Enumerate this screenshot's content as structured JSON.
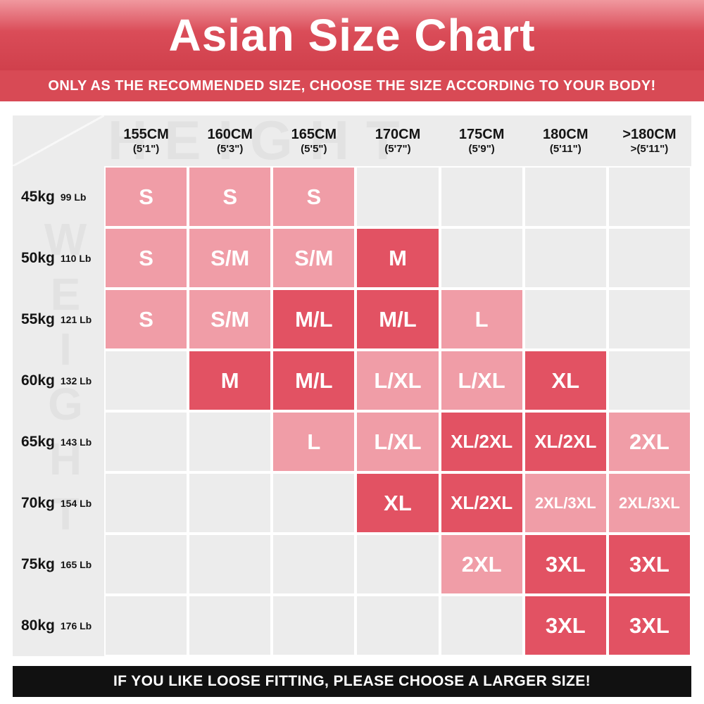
{
  "header": {
    "title": "Asian Size Chart",
    "subtitle": "ONLY AS THE RECOMMENDED SIZE, CHOOSE THE SIZE ACCORDING TO YOUR BODY!"
  },
  "watermarks": {
    "height": "HEIGHT",
    "weight": "WEIGHT"
  },
  "footer": {
    "note": "IF YOU LIKE LOOSE FITTING, PLEASE CHOOSE A LARGER SIZE!"
  },
  "colors": {
    "banner_red_top": "#f0989f",
    "banner_red": "#da4c58",
    "banner_red_bottom": "#d0404c",
    "subtitle_red": "#d84a55",
    "panel_gray": "#ececec",
    "watermark_gray": "#e2e2e2",
    "cell_pink_light": "#f09da7",
    "cell_red_dark": "#e25263",
    "footer_black": "#111111"
  },
  "chart_data": {
    "type": "table",
    "title": "Asian Size Chart",
    "x_axis_label": "HEIGHT",
    "y_axis_label": "WEIGHT",
    "columns": [
      {
        "cm": "155CM",
        "ft": "(5'1\")"
      },
      {
        "cm": "160CM",
        "ft": "(5'3\")"
      },
      {
        "cm": "165CM",
        "ft": "(5'5\")"
      },
      {
        "cm": "170CM",
        "ft": "(5'7\")"
      },
      {
        "cm": "175CM",
        "ft": "(5'9\")"
      },
      {
        "cm": "180CM",
        "ft": "(5'11\")"
      },
      {
        "cm": ">180CM",
        "ft": ">(5'11\")"
      }
    ],
    "rows": [
      {
        "kg": "45kg",
        "lb": "99 Lb",
        "cells": [
          {
            "label": "S",
            "tone": "light"
          },
          {
            "label": "S",
            "tone": "light"
          },
          {
            "label": "S",
            "tone": "light"
          },
          null,
          null,
          null,
          null
        ]
      },
      {
        "kg": "50kg",
        "lb": "110 Lb",
        "cells": [
          {
            "label": "S",
            "tone": "light"
          },
          {
            "label": "S/M",
            "tone": "light"
          },
          {
            "label": "S/M",
            "tone": "light"
          },
          {
            "label": "M",
            "tone": "dark"
          },
          null,
          null,
          null
        ]
      },
      {
        "kg": "55kg",
        "lb": "121 Lb",
        "cells": [
          {
            "label": "S",
            "tone": "light"
          },
          {
            "label": "S/M",
            "tone": "light"
          },
          {
            "label": "M/L",
            "tone": "dark"
          },
          {
            "label": "M/L",
            "tone": "dark"
          },
          {
            "label": "L",
            "tone": "light"
          },
          null,
          null
        ]
      },
      {
        "kg": "60kg",
        "lb": "132 Lb",
        "cells": [
          null,
          {
            "label": "M",
            "tone": "dark"
          },
          {
            "label": "M/L",
            "tone": "dark"
          },
          {
            "label": "L/XL",
            "tone": "light"
          },
          {
            "label": "L/XL",
            "tone": "light"
          },
          {
            "label": "XL",
            "tone": "dark"
          },
          null
        ]
      },
      {
        "kg": "65kg",
        "lb": "143 Lb",
        "cells": [
          null,
          null,
          {
            "label": "L",
            "tone": "light"
          },
          {
            "label": "L/XL",
            "tone": "light"
          },
          {
            "label": "XL/2XL",
            "tone": "dark"
          },
          {
            "label": "XL/2XL",
            "tone": "dark"
          },
          {
            "label": "2XL",
            "tone": "light"
          }
        ]
      },
      {
        "kg": "70kg",
        "lb": "154 Lb",
        "cells": [
          null,
          null,
          null,
          {
            "label": "XL",
            "tone": "dark"
          },
          {
            "label": "XL/2XL",
            "tone": "dark"
          },
          {
            "label": "2XL/3XL",
            "tone": "light"
          },
          {
            "label": "2XL/3XL",
            "tone": "light"
          }
        ]
      },
      {
        "kg": "75kg",
        "lb": "165 Lb",
        "cells": [
          null,
          null,
          null,
          null,
          {
            "label": "2XL",
            "tone": "light"
          },
          {
            "label": "3XL",
            "tone": "dark"
          },
          {
            "label": "3XL",
            "tone": "dark"
          }
        ]
      },
      {
        "kg": "80kg",
        "lb": "176 Lb",
        "cells": [
          null,
          null,
          null,
          null,
          null,
          {
            "label": "3XL",
            "tone": "dark"
          },
          {
            "label": "3XL",
            "tone": "dark"
          }
        ]
      }
    ]
  }
}
